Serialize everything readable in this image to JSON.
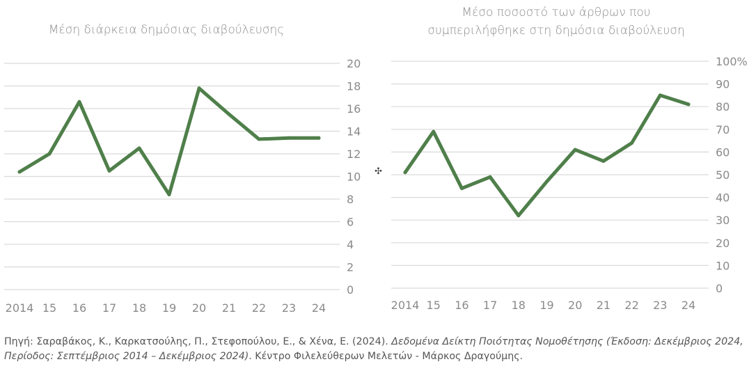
{
  "chart_data": [
    {
      "type": "line",
      "title_lines": [
        "Μέση διάρκεια δημόσιας διαβούλευσης"
      ],
      "categories": [
        "2014",
        "15",
        "16",
        "17",
        "18",
        "19",
        "20",
        "21",
        "22",
        "23",
        "24"
      ],
      "series": [
        {
          "name": "Μέση διάρκεια δημόσιας διαβούλευσης",
          "values": [
            10.4,
            12.0,
            16.6,
            10.5,
            12.5,
            8.4,
            17.8,
            15.5,
            13.3,
            13.4,
            13.4
          ]
        }
      ],
      "ylim": [
        0,
        20
      ],
      "yticks": [
        "0",
        "2",
        "4",
        "6",
        "8",
        "10",
        "12",
        "14",
        "16",
        "18",
        "20"
      ],
      "ytick_values": [
        0,
        2,
        4,
        6,
        8,
        10,
        12,
        14,
        16,
        18,
        20
      ],
      "y_axis_side": "right",
      "grid": true,
      "color": "#4f7f4a"
    },
    {
      "type": "line",
      "title_lines": [
        "Μέσο ποσοστό των άρθρων που",
        "συμπεριλήφθηκε στη δημόσια διαβούλευση"
      ],
      "categories": [
        "2014",
        "15",
        "16",
        "17",
        "18",
        "19",
        "20",
        "21",
        "22",
        "23",
        "24"
      ],
      "series": [
        {
          "name": "Μέσο ποσοστό των άρθρων που συμπεριλήφθηκε στη δημόσια διαβούλευση",
          "values": [
            51,
            69,
            44,
            49,
            32,
            47,
            61,
            56,
            64,
            85,
            81
          ]
        }
      ],
      "ylim": [
        0,
        100
      ],
      "yticks": [
        "0",
        "10",
        "20",
        "30",
        "40",
        "50",
        "60",
        "70",
        "80",
        "90",
        "100%"
      ],
      "ytick_values": [
        0,
        10,
        20,
        30,
        40,
        50,
        60,
        70,
        80,
        90,
        100
      ],
      "y_axis_side": "right",
      "grid": true,
      "color": "#4f7f4a"
    }
  ],
  "source": {
    "prefix": "Πηγή: Σαραβάκος, Κ., Καρκατσούλης, Π., Στεφοπούλου, Ε., & Χένα, Ε. (2024). ",
    "italic": "Δεδομένα Δείκτη Ποιότητας Νομοθέτησης (Έκδοση: Δεκέμβριος 2024, Περίοδος: Σεπτέμβριος 2014 – Δεκέμβριος 2024)",
    "suffix": ". Κέντρο Φιλελεύθερων Μελετών - Μάρκος Δραγούμης."
  }
}
